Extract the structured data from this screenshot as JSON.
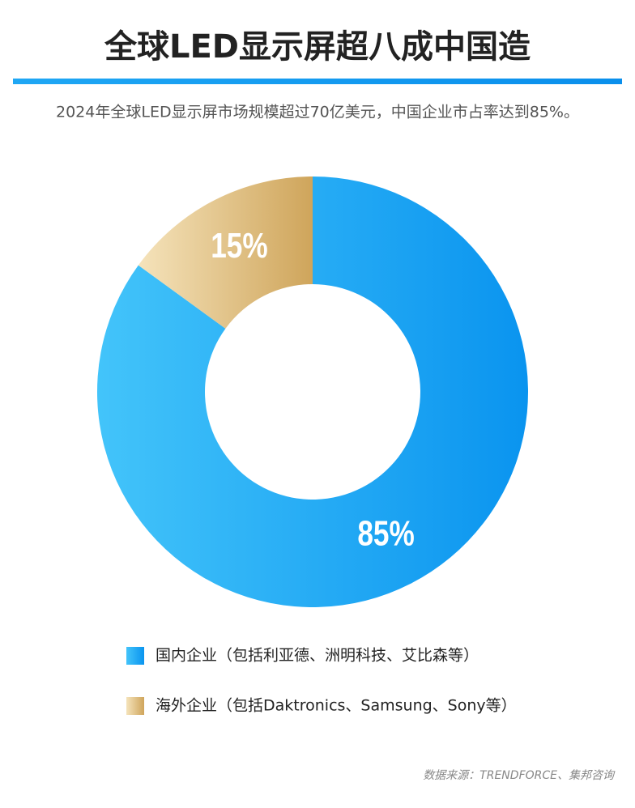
{
  "chart_data": {
    "type": "donut",
    "title": "全球LED显示屏超八成中国造",
    "subtitle": "2024年全球LED显示屏市场规模超过70亿美元，中国企业市占率达到85%。",
    "categories": [
      "国内企业（包括利亚德、洲明科技、艾比森等）",
      "海外企业（包括Daktronics、Samsung、Sony等）"
    ],
    "values": [
      85,
      15
    ],
    "value_labels": [
      "85%",
      "15%"
    ],
    "gradients": [
      [
        "#43c4fa",
        "#0a94ef"
      ],
      [
        "#f5e3bb",
        "#cfa55b"
      ]
    ],
    "source": "数据来源：TRENDFORCE、集邦咨询"
  }
}
